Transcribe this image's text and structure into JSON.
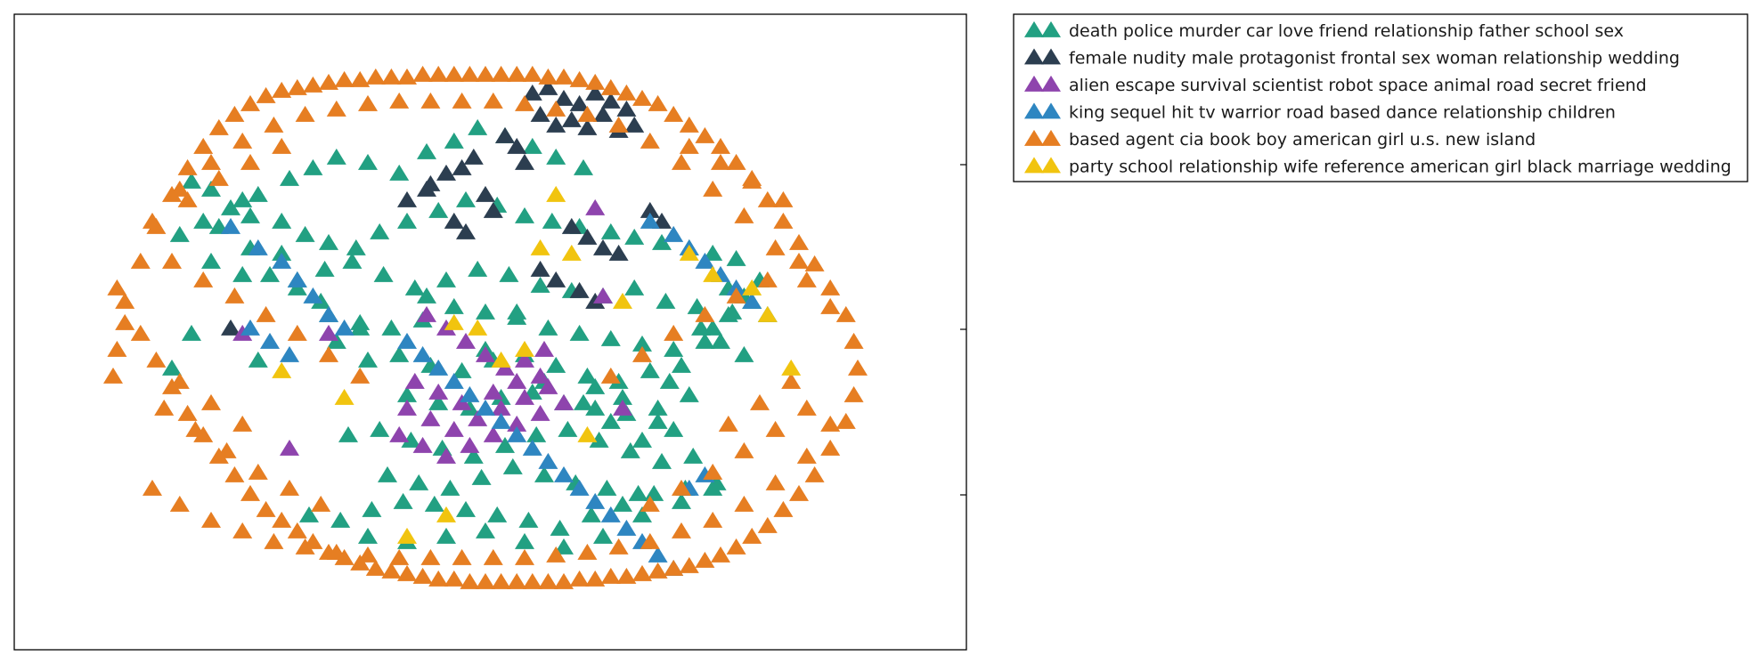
{
  "chart_data": {
    "type": "scatter",
    "marker": "triangle",
    "title": "",
    "xlabel": "",
    "ylabel": "",
    "xlim": [
      -100,
      100
    ],
    "ylim": [
      -100,
      100
    ],
    "grid": false,
    "legend_position": "outside-top-right",
    "series": [
      {
        "name": "death police murder car love friend relationship father school sex",
        "color": "#22a082",
        "x": [
          -75,
          -70,
          -62,
          -58,
          -50,
          -44,
          -38,
          -30,
          -22,
          -15,
          -8,
          -2,
          5,
          12,
          18,
          25,
          -68,
          -60,
          -52,
          -46,
          -40,
          -33,
          -27,
          -20,
          -12,
          -5,
          3,
          10,
          17,
          24,
          32,
          38,
          45,
          52,
          58,
          64,
          -55,
          -48,
          -41,
          -34,
          -26,
          -18,
          -10,
          -2,
          6,
          14,
          22,
          30,
          38,
          46,
          54,
          62,
          -40,
          -32,
          -24,
          -16,
          -8,
          0,
          8,
          16,
          24,
          32,
          40,
          48,
          56,
          -30,
          -22,
          -14,
          -6,
          2,
          10,
          18,
          26,
          34,
          42,
          50,
          -20,
          -12,
          -4,
          4,
          12,
          20,
          28,
          36,
          44,
          -35,
          -27,
          -19,
          -11,
          -3,
          5,
          13,
          21,
          29,
          37,
          45,
          53,
          -25,
          -17,
          -9,
          -1,
          7,
          15,
          23,
          31,
          39,
          -45,
          -37,
          -29,
          -21,
          -13,
          -5,
          3,
          11,
          19,
          27,
          35,
          43,
          51,
          59,
          -30,
          -20,
          -10,
          0,
          10,
          20,
          30,
          40,
          50,
          58,
          62,
          68,
          72,
          55,
          60,
          66,
          -65,
          -72,
          -78,
          -60,
          -52,
          -15,
          0,
          8,
          15,
          28,
          35,
          44,
          48,
          -32,
          -38,
          -42,
          -48,
          -58,
          -62,
          -70,
          -75,
          -80,
          25,
          32,
          40,
          47,
          52,
          58,
          63,
          66,
          70
        ],
        "y": [
          55,
          52,
          48,
          50,
          56,
          60,
          64,
          62,
          58,
          66,
          70,
          75,
          72,
          68,
          64,
          60,
          38,
          42,
          40,
          35,
          32,
          30,
          36,
          40,
          44,
          48,
          46,
          42,
          40,
          38,
          36,
          34,
          32,
          30,
          28,
          26,
          20,
          18,
          22,
          25,
          20,
          15,
          18,
          22,
          20,
          16,
          14,
          12,
          15,
          10,
          8,
          5,
          5,
          2,
          0,
          3,
          8,
          6,
          4,
          0,
          -2,
          -4,
          -6,
          -8,
          -5,
          -12,
          -10,
          -14,
          -16,
          -12,
          -10,
          -14,
          -18,
          -20,
          -16,
          -14,
          -25,
          -28,
          -30,
          -26,
          -24,
          -28,
          -30,
          -32,
          -35,
          -40,
          -38,
          -42,
          -45,
          -48,
          -44,
          -40,
          -38,
          -42,
          -46,
          -50,
          -48,
          -55,
          -58,
          -60,
          -56,
          -52,
          -55,
          -58,
          -60,
          -62,
          -70,
          -72,
          -68,
          -65,
          -66,
          -68,
          -70,
          -72,
          -75,
          -70,
          -66,
          -62,
          -60,
          -58,
          -78,
          -80,
          -78,
          -76,
          -80,
          -82,
          -78,
          -70,
          -65,
          -60,
          15,
          10,
          5,
          0,
          -5,
          -10,
          45,
          40,
          35,
          30,
          28,
          12,
          -8,
          6,
          -20,
          -22,
          -26,
          -30,
          -38,
          0,
          -5,
          10,
          15,
          -12,
          20,
          25,
          -2,
          -15,
          -28,
          -35,
          -42,
          -20,
          -25,
          0,
          6,
          12,
          18
        ]
      },
      {
        "name": "female nudity male protagonist frontal sex woman relationship wedding",
        "color": "#2c3e50",
        "x": [
          12,
          16,
          20,
          24,
          28,
          32,
          36,
          14,
          18,
          22,
          26,
          30,
          34,
          38,
          5,
          8,
          10,
          -3,
          -6,
          -10,
          -14,
          0,
          2,
          22,
          26,
          30,
          34,
          14,
          18,
          24,
          28,
          -15,
          -20,
          -8,
          -5,
          42,
          45,
          -65
        ],
        "y": [
          88,
          90,
          86,
          84,
          88,
          85,
          82,
          80,
          76,
          78,
          75,
          80,
          74,
          76,
          72,
          68,
          62,
          64,
          60,
          58,
          54,
          50,
          44,
          38,
          34,
          30,
          28,
          22,
          18,
          14,
          10,
          52,
          48,
          40,
          36,
          44,
          40,
          0
        ]
      },
      {
        "name": "alien escape survival scientist robot space animal road secret friend",
        "color": "#8e44ad",
        "x": [
          -15,
          -10,
          -5,
          0,
          5,
          10,
          15,
          -18,
          -12,
          -6,
          2,
          8,
          14,
          -20,
          -14,
          -8,
          -2,
          4,
          10,
          16,
          -22,
          -16,
          -10,
          -4,
          2,
          8,
          14,
          20,
          28,
          30,
          35,
          -40,
          -50,
          -62
        ],
        "y": [
          5,
          0,
          -5,
          -10,
          -15,
          -12,
          -8,
          -20,
          -24,
          -28,
          -24,
          -20,
          -18,
          -30,
          -34,
          -38,
          -34,
          -30,
          -26,
          -22,
          -40,
          -44,
          -48,
          -44,
          -40,
          -36,
          -32,
          -28,
          45,
          12,
          -30,
          -2,
          -45,
          -2
        ]
      },
      {
        "name": "king sequel hit tv warrior road based dance relationship children",
        "color": "#2e86c1",
        "x": [
          -65,
          -58,
          -52,
          -48,
          -44,
          -40,
          -36,
          42,
          48,
          52,
          56,
          60,
          64,
          68,
          -20,
          -16,
          -12,
          -8,
          -4,
          0,
          4,
          8,
          12,
          16,
          20,
          24,
          28,
          32,
          36,
          40,
          44,
          48,
          52,
          56,
          -60,
          -55,
          -50
        ],
        "y": [
          38,
          30,
          25,
          18,
          12,
          5,
          0,
          40,
          35,
          30,
          25,
          20,
          15,
          10,
          -5,
          -10,
          -15,
          -20,
          -25,
          -30,
          -35,
          -40,
          -45,
          -50,
          -55,
          -60,
          -65,
          -70,
          -75,
          -80,
          -85,
          -90,
          -60,
          -55,
          0,
          -5,
          -10
        ]
      },
      {
        "name": "based agent cia book boy american girl u.s. new island",
        "color": "#e67e22",
        "x": [
          -92,
          -88,
          -84,
          -80,
          -76,
          -72,
          -68,
          -64,
          -60,
          -56,
          -52,
          -48,
          -44,
          -40,
          -36,
          -32,
          -28,
          -24,
          -20,
          -16,
          -12,
          -8,
          -4,
          0,
          4,
          8,
          12,
          16,
          20,
          24,
          28,
          32,
          36,
          40,
          44,
          48,
          52,
          56,
          60,
          64,
          68,
          72,
          76,
          80,
          84,
          88,
          92,
          94,
          95,
          94,
          92,
          88,
          84,
          80,
          76,
          72,
          68,
          64,
          60,
          56,
          52,
          48,
          44,
          40,
          36,
          32,
          28,
          24,
          20,
          16,
          12,
          8,
          4,
          0,
          -4,
          -8,
          -12,
          -16,
          -20,
          -24,
          -28,
          -32,
          -36,
          -40,
          -44,
          -48,
          -52,
          -56,
          -60,
          -64,
          -68,
          -72,
          -76,
          -80,
          -84,
          -88,
          -92,
          -94,
          -95,
          -94,
          -85,
          -78,
          -70,
          -62,
          -54,
          -46,
          -38,
          -30,
          -22,
          -14,
          -6,
          2,
          10,
          18,
          26,
          34,
          42,
          50,
          58,
          66,
          74,
          82,
          88,
          -85,
          -78,
          -70,
          -62,
          -54,
          -46,
          -38,
          -30,
          -22,
          -14,
          -6,
          2,
          10,
          18,
          26,
          34,
          42,
          50,
          58,
          66,
          74,
          82,
          88,
          -80,
          -72,
          -64,
          -56,
          -48,
          -40,
          -32,
          32,
          40,
          48,
          56,
          64,
          72,
          80,
          -82,
          -74,
          -66,
          -58,
          -50,
          -42,
          42,
          50,
          58,
          66,
          74,
          82,
          -76,
          -68,
          -60,
          -52,
          52,
          60,
          68,
          76,
          -78,
          -70,
          -62,
          62,
          70,
          78
        ],
        "y": [
          10,
          25,
          38,
          50,
          60,
          68,
          75,
          80,
          84,
          87,
          89,
          90,
          91,
          92,
          93,
          93,
          94,
          94,
          94,
          95,
          95,
          95,
          95,
          95,
          95,
          95,
          95,
          94,
          94,
          93,
          92,
          90,
          88,
          86,
          84,
          80,
          76,
          72,
          68,
          62,
          55,
          48,
          40,
          32,
          24,
          15,
          5,
          -5,
          -15,
          -25,
          -35,
          -45,
          -55,
          -62,
          -68,
          -74,
          -78,
          -82,
          -85,
          -87,
          -89,
          -90,
          -91,
          -92,
          -93,
          -93,
          -94,
          -94,
          -95,
          -95,
          -95,
          -95,
          -95,
          -95,
          -95,
          -94,
          -94,
          -93,
          -92,
          -91,
          -90,
          -88,
          -86,
          -84,
          -80,
          -76,
          -72,
          -68,
          -62,
          -55,
          -48,
          -40,
          -32,
          -22,
          -12,
          -2,
          2,
          -8,
          -18,
          15,
          -60,
          -66,
          -72,
          -76,
          -80,
          -82,
          -84,
          -85,
          -86,
          -86,
          -86,
          -86,
          -86,
          -85,
          -84,
          -82,
          -80,
          -76,
          -72,
          -66,
          -58,
          -48,
          -36,
          40,
          52,
          62,
          70,
          76,
          80,
          82,
          84,
          85,
          85,
          85,
          85,
          84,
          82,
          80,
          76,
          70,
          62,
          52,
          42,
          30,
          18,
          8,
          25,
          18,
          12,
          5,
          -2,
          -10,
          -18,
          -18,
          -10,
          -2,
          5,
          12,
          18,
          25,
          -30,
          -38,
          -46,
          -54,
          -60,
          -66,
          -66,
          -60,
          -54,
          -46,
          -38,
          -30,
          48,
          56,
          62,
          68,
          68,
          62,
          56,
          48,
          -20,
          -28,
          -36,
          -36,
          -28,
          -20
        ]
      },
      {
        "name": "party school relationship wife reference american girl black marriage wedding",
        "color": "#f1c40f",
        "x": [
          -52,
          -36,
          -8,
          -2,
          4,
          10,
          14,
          18,
          22,
          26,
          35,
          52,
          58,
          68,
          72,
          78,
          -10,
          -20
        ],
        "y": [
          -16,
          -26,
          2,
          0,
          -12,
          -8,
          30,
          50,
          28,
          -40,
          10,
          28,
          20,
          15,
          5,
          -15,
          -70,
          -78
        ]
      }
    ]
  }
}
